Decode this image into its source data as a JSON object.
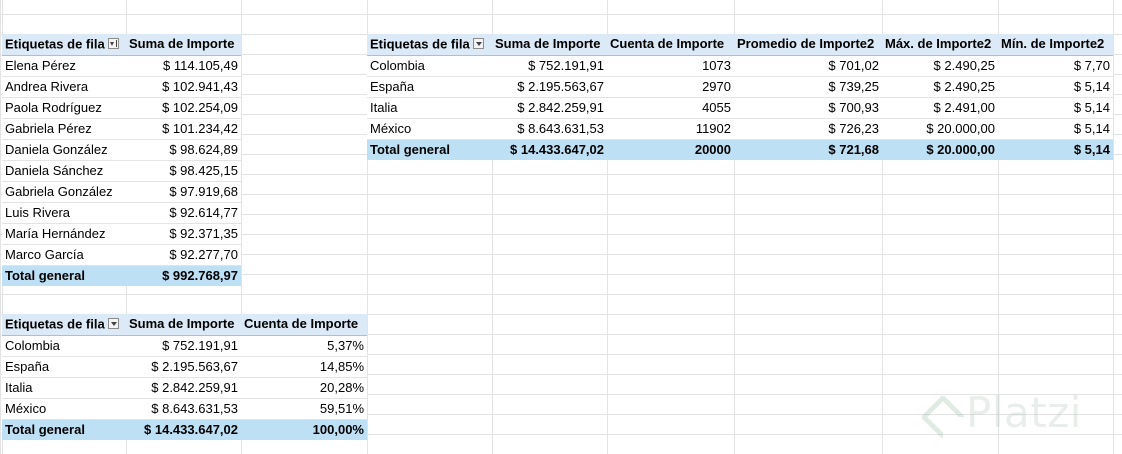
{
  "pivot_top_left": {
    "headers": [
      "Etiquetas de fila",
      "Suma de Importe"
    ],
    "rows": [
      {
        "label": "Elena Pérez",
        "sum": "$ 114.105,49"
      },
      {
        "label": "Andrea Rivera",
        "sum": "$ 102.941,43"
      },
      {
        "label": "Paola Rodríguez",
        "sum": "$ 102.254,09"
      },
      {
        "label": "Gabriela Pérez",
        "sum": "$ 101.234,42"
      },
      {
        "label": "Daniela González",
        "sum": "$ 98.624,89"
      },
      {
        "label": "Daniela Sánchez",
        "sum": "$ 98.425,15"
      },
      {
        "label": "Gabriela González",
        "sum": "$ 97.919,68"
      },
      {
        "label": "Luis Rivera",
        "sum": "$ 92.614,77"
      },
      {
        "label": "María Hernández",
        "sum": "$ 92.371,35"
      },
      {
        "label": "Marco García",
        "sum": "$ 92.277,70"
      }
    ],
    "total": {
      "label": "Total general",
      "sum": "$ 992.768,97"
    }
  },
  "pivot_top_right": {
    "headers": [
      "Etiquetas de fila",
      "Suma de Importe",
      "Cuenta de Importe",
      "Promedio de Importe2",
      "Máx. de Importe2",
      "Mín. de Importe2"
    ],
    "rows": [
      {
        "label": "Colombia",
        "sum": "$ 752.191,91",
        "count": "1073",
        "avg": "$ 701,02",
        "max": "$ 2.490,25",
        "min": "$ 7,70"
      },
      {
        "label": "España",
        "sum": "$ 2.195.563,67",
        "count": "2970",
        "avg": "$ 739,25",
        "max": "$ 2.490,25",
        "min": "$ 5,14"
      },
      {
        "label": "Italia",
        "sum": "$ 2.842.259,91",
        "count": "4055",
        "avg": "$ 700,93",
        "max": "$ 2.491,00",
        "min": "$ 5,14"
      },
      {
        "label": "México",
        "sum": "$ 8.643.631,53",
        "count": "11902",
        "avg": "$ 726,23",
        "max": "$ 20.000,00",
        "min": "$ 5,14"
      }
    ],
    "total": {
      "label": "Total general",
      "sum": "$ 14.433.647,02",
      "count": "20000",
      "avg": "$ 721,68",
      "max": "$ 20.000,00",
      "min": "$ 5,14"
    }
  },
  "pivot_bottom": {
    "headers": [
      "Etiquetas de fila",
      "Suma de Importe",
      "Cuenta de Importe"
    ],
    "rows": [
      {
        "label": "Colombia",
        "sum": "$ 752.191,91",
        "pct": "5,37%"
      },
      {
        "label": "España",
        "sum": "$ 2.195.563,67",
        "pct": "14,85%"
      },
      {
        "label": "Italia",
        "sum": "$ 2.842.259,91",
        "pct": "20,28%"
      },
      {
        "label": "México",
        "sum": "$ 8.643.631,53",
        "pct": "59,51%"
      }
    ],
    "total": {
      "label": "Total general",
      "sum": "$ 14.433.647,02",
      "pct": "100,00%"
    }
  },
  "watermark": {
    "text": "Platzi",
    "icon": "platzi-logo-icon"
  }
}
